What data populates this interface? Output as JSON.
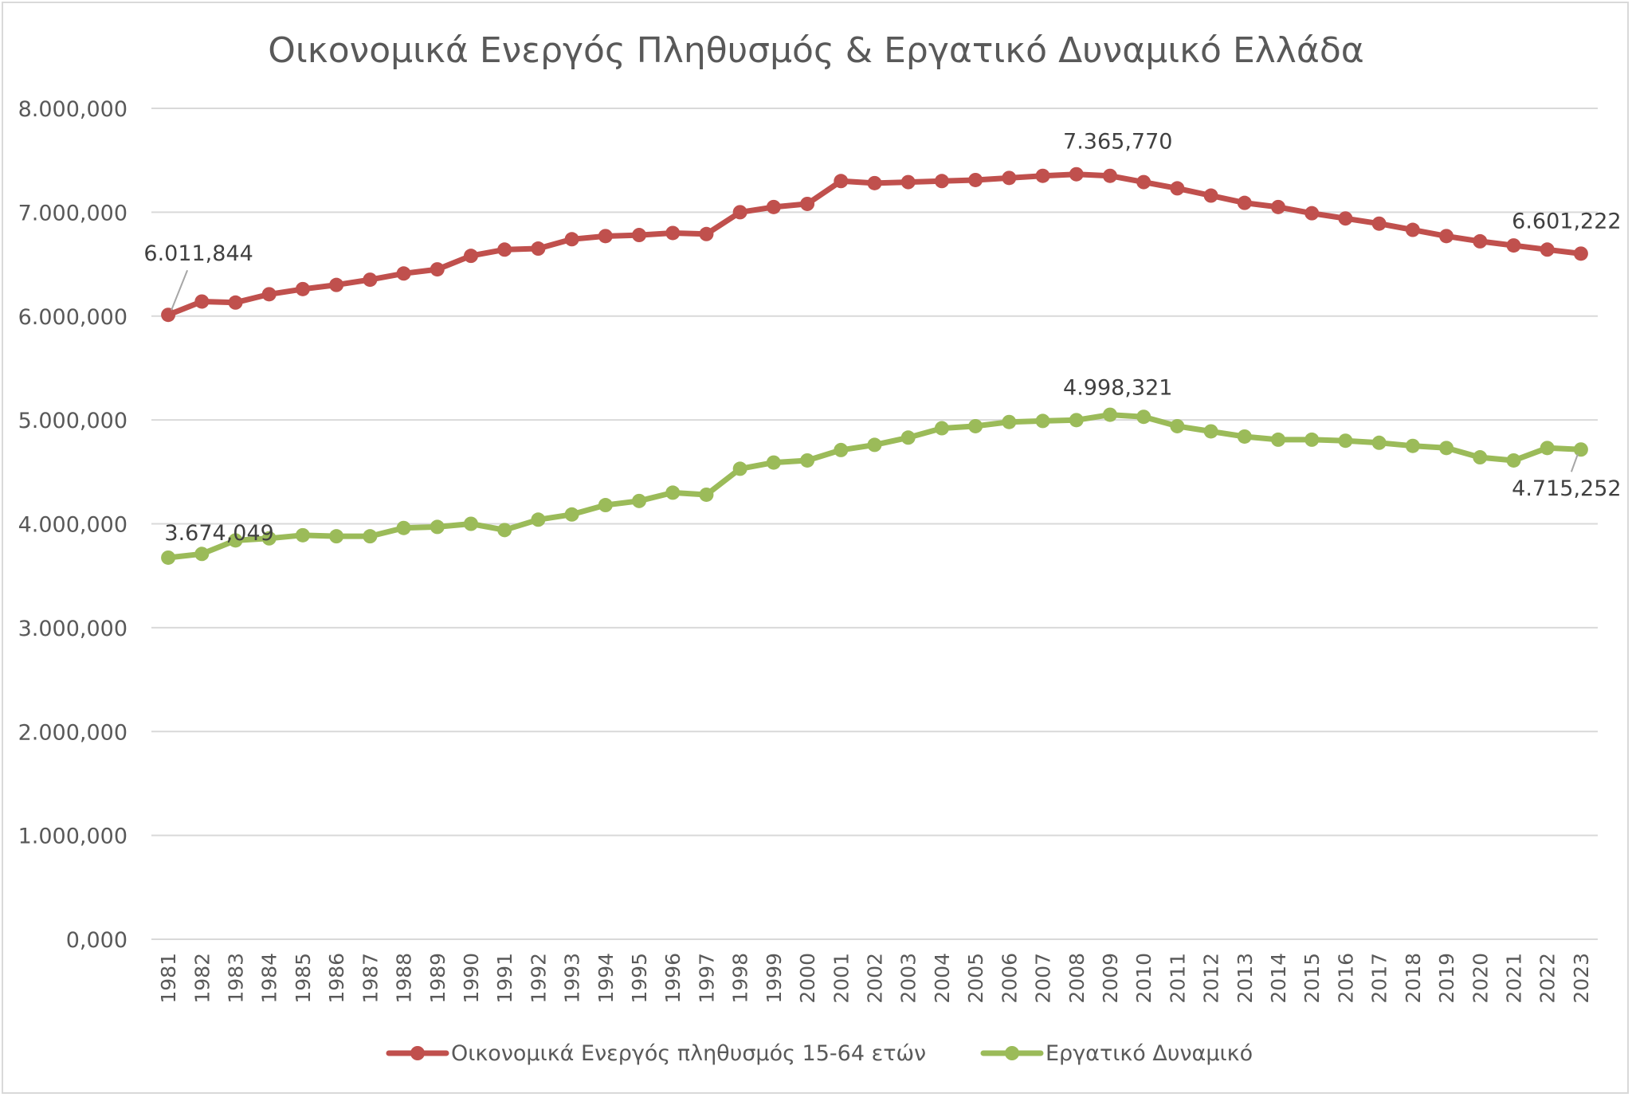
{
  "chart_data": {
    "type": "line",
    "title": "Οικονομικά Ενεργός Πληθυσμός & Εργατικό Δυναμικό Ελλάδα",
    "xlabel": "",
    "ylabel": "",
    "ylim": [
      0,
      8000000
    ],
    "yticks": [
      "0,000",
      "1.000,000",
      "2.000,000",
      "3.000,000",
      "4.000,000",
      "5.000,000",
      "6.000,000",
      "7.000,000",
      "8.000,000"
    ],
    "grid": true,
    "legend_position": "bottom",
    "x": [
      "1981",
      "1982",
      "1983",
      "1984",
      "1985",
      "1986",
      "1987",
      "1988",
      "1989",
      "1990",
      "1991",
      "1992",
      "1993",
      "1994",
      "1995",
      "1996",
      "1997",
      "1998",
      "1999",
      "2000",
      "2001",
      "2002",
      "2003",
      "2004",
      "2005",
      "2006",
      "2007",
      "2008",
      "2009",
      "2010",
      "2011",
      "2012",
      "2013",
      "2014",
      "2015",
      "2016",
      "2017",
      "2018",
      "2019",
      "2020",
      "2021",
      "2022",
      "2023"
    ],
    "series": [
      {
        "name": "Οικονομικά Ενεργός πληθυσμός 15-64 ετών",
        "color": "#c0504d",
        "values": [
          6011844,
          6140000,
          6130000,
          6210000,
          6260000,
          6300000,
          6350000,
          6410000,
          6450000,
          6580000,
          6640000,
          6650000,
          6740000,
          6770000,
          6780000,
          6800000,
          6790000,
          7000000,
          7050000,
          7080000,
          7300000,
          7280000,
          7290000,
          7300000,
          7310000,
          7330000,
          7350000,
          7365770,
          7350000,
          7290000,
          7230000,
          7160000,
          7090000,
          7050000,
          6990000,
          6940000,
          6890000,
          6830000,
          6770000,
          6720000,
          6680000,
          6640000,
          6601222
        ]
      },
      {
        "name": "Εργατικό Δυναμικό",
        "color": "#9bbb59",
        "values": [
          3674049,
          3710000,
          3840000,
          3860000,
          3890000,
          3880000,
          3880000,
          3960000,
          3970000,
          4000000,
          3940000,
          4040000,
          4090000,
          4180000,
          4220000,
          4300000,
          4280000,
          4530000,
          4590000,
          4610000,
          4710000,
          4760000,
          4830000,
          4920000,
          4940000,
          4980000,
          4990000,
          4998321,
          5050000,
          5030000,
          4940000,
          4890000,
          4840000,
          4810000,
          4810000,
          4800000,
          4780000,
          4750000,
          4730000,
          4640000,
          4610000,
          4730000,
          4715252
        ]
      }
    ],
    "annotations": [
      {
        "series": 0,
        "index": 0,
        "text": "6.011,844"
      },
      {
        "series": 0,
        "index": 27,
        "text": "7.365,770"
      },
      {
        "series": 0,
        "index": 42,
        "text": "6.601,222"
      },
      {
        "series": 1,
        "index": 0,
        "text": "3.674,049"
      },
      {
        "series": 1,
        "index": 27,
        "text": "4.998,321"
      },
      {
        "series": 1,
        "index": 42,
        "text": "4.715,252"
      }
    ]
  }
}
